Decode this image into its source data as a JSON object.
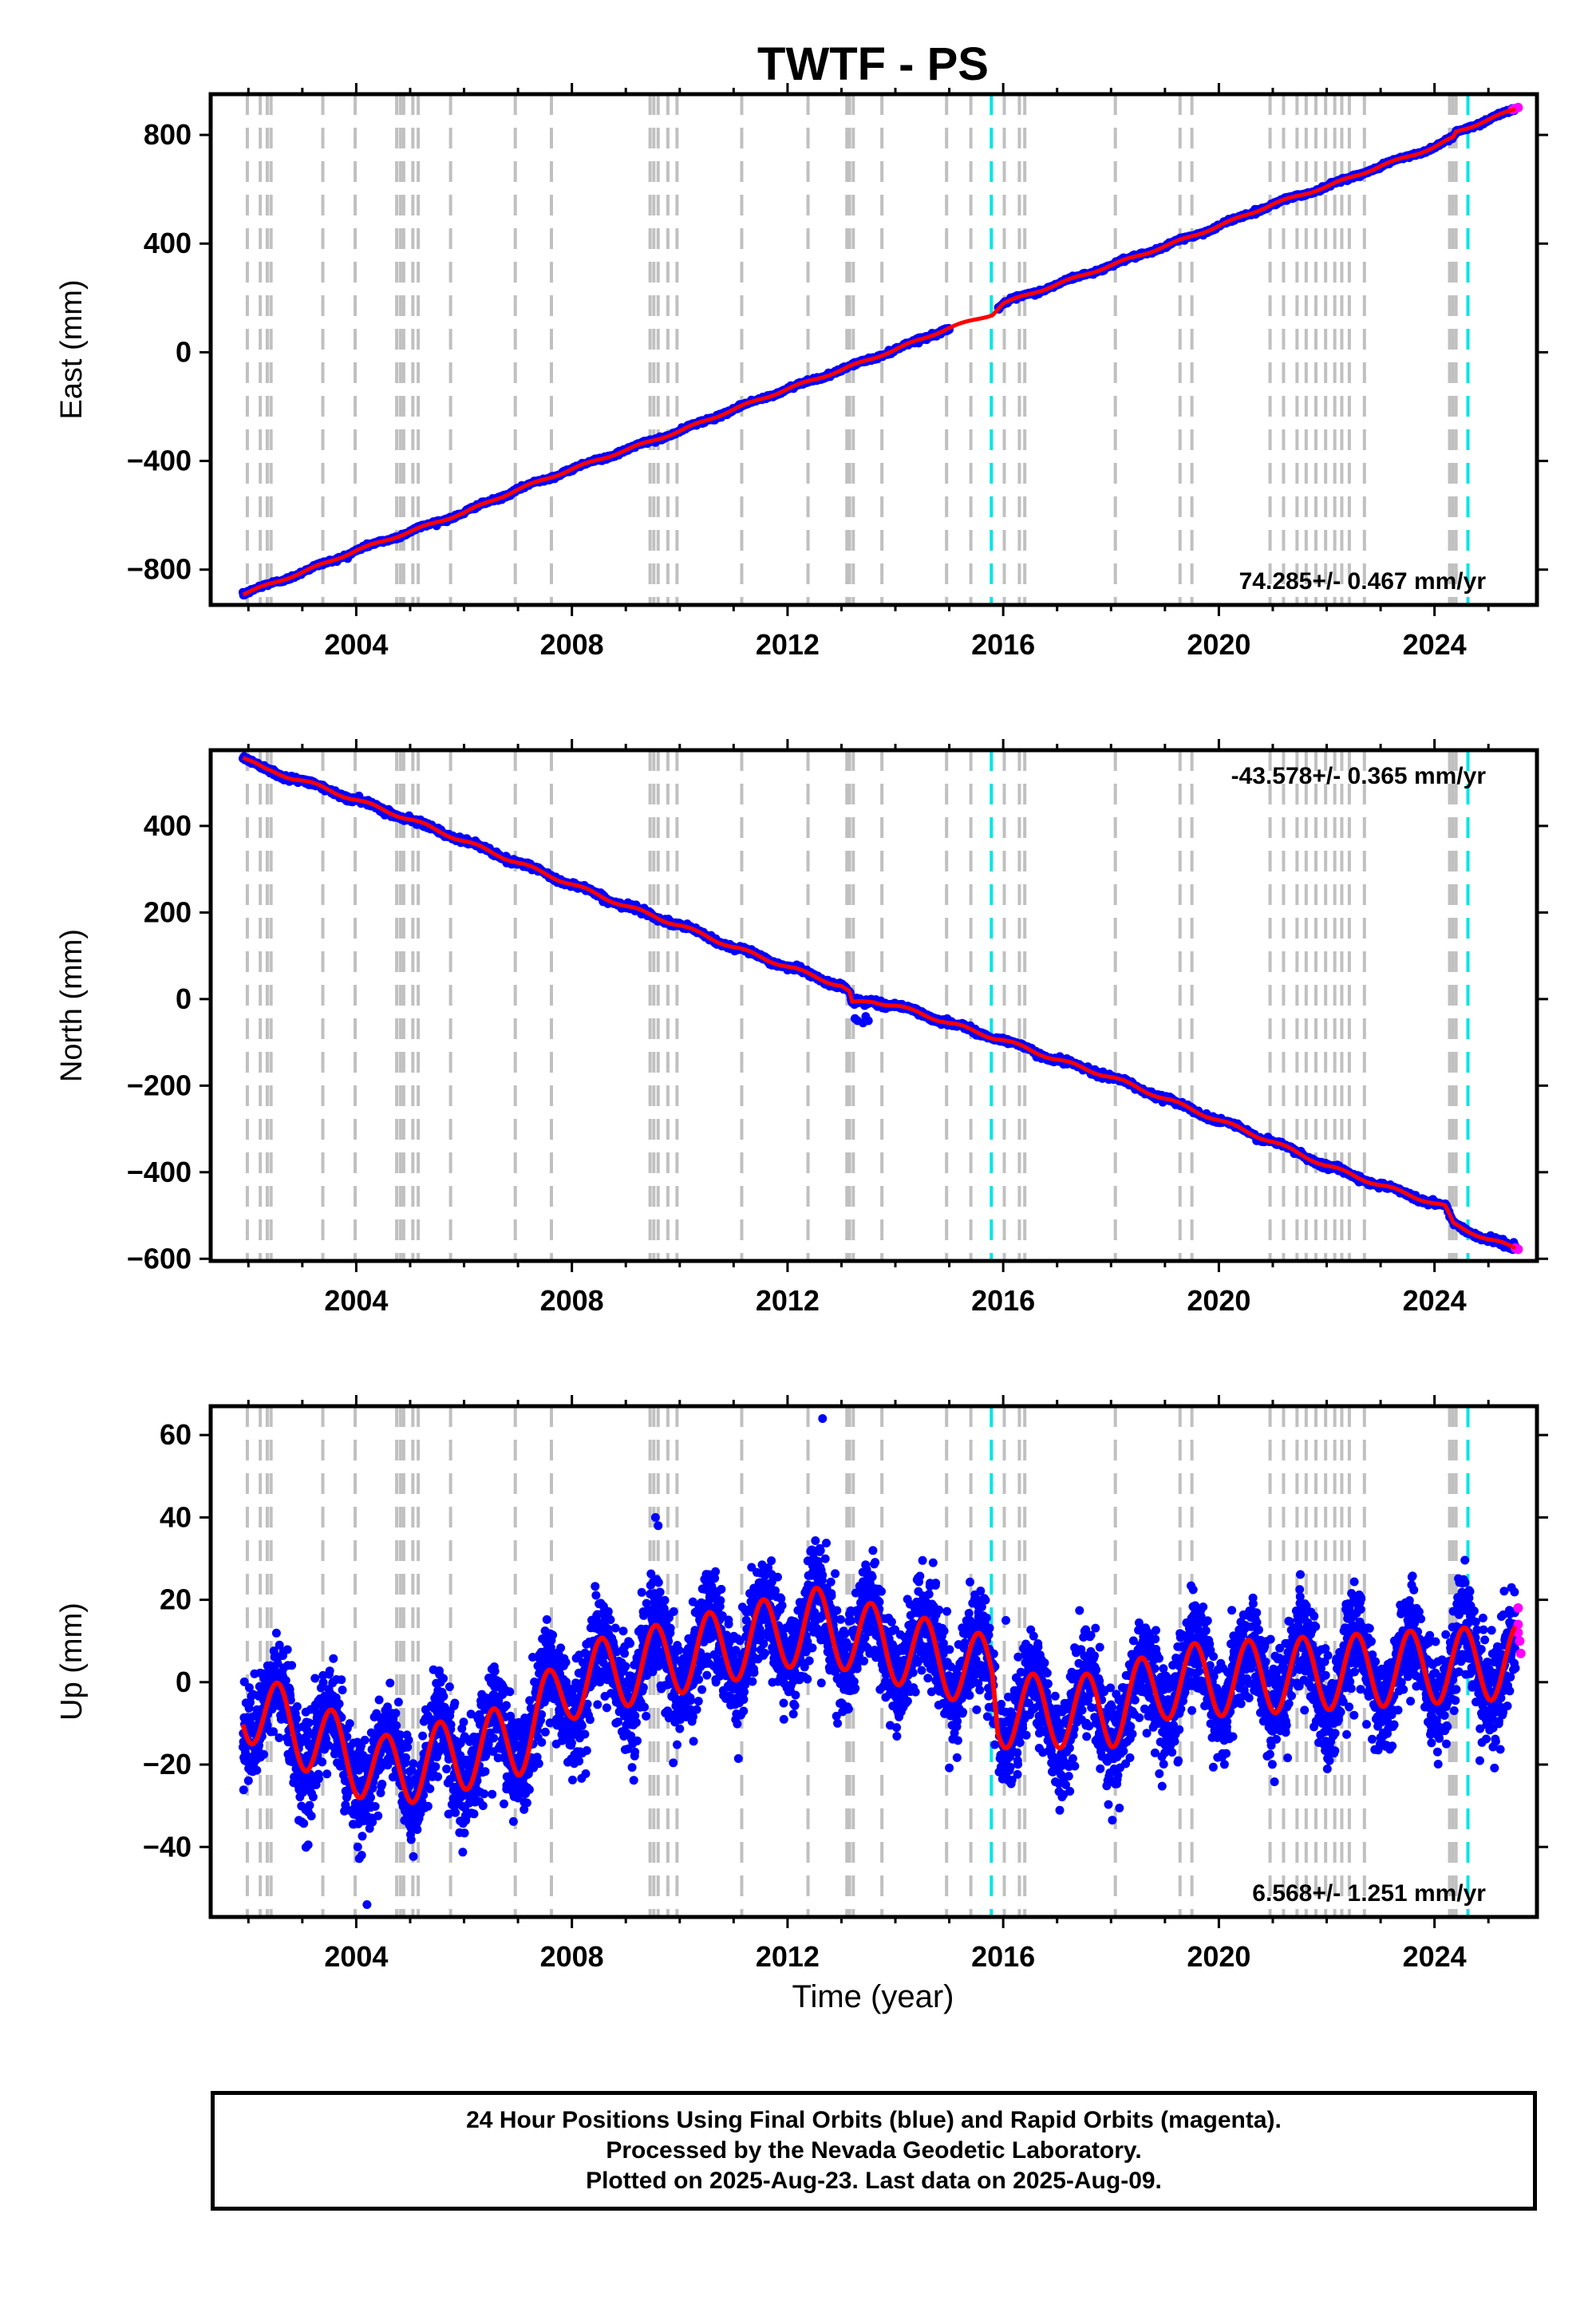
{
  "title": "TWTF - PS",
  "xlabel": "Time (year)",
  "footer": {
    "line1": "24 Hour Positions Using Final Orbits (blue) and Rapid Orbits (magenta).",
    "line2": "Processed by the Nevada Geodetic Laboratory.",
    "line3": "Plotted on 2025-Aug-23. Last data on 2025-Aug-09."
  },
  "colors": {
    "final_orbits": "#0000ff",
    "rapid_orbits": "#ff00ff",
    "model": "#ff0000",
    "equipment_change": "#c0c0c0",
    "earthquake": "#00e5e5"
  },
  "chart_data": [
    {
      "type": "scatter",
      "name": "east",
      "ylabel": "East (mm)",
      "xlim": [
        2001.3,
        2025.9
      ],
      "ylim": [
        -930,
        950
      ],
      "xticks": [
        "2004",
        "2008",
        "2012",
        "2016",
        "2020",
        "2024"
      ],
      "yticks": [
        "800",
        "400",
        "0",
        "−400",
        "−800"
      ],
      "rate": "74.285+/- 0.467 mm/yr",
      "rate_position": "bottom-right",
      "model_keypoints": [
        [
          2001.9,
          -890
        ],
        [
          2003.0,
          -810
        ],
        [
          2004.0,
          -730
        ],
        [
          2005.0,
          -660
        ],
        [
          2006.0,
          -590
        ],
        [
          2007.0,
          -505
        ],
        [
          2008.0,
          -430
        ],
        [
          2009.0,
          -360
        ],
        [
          2010.0,
          -290
        ],
        [
          2011.0,
          -210
        ],
        [
          2012.0,
          -135
        ],
        [
          2013.0,
          -65
        ],
        [
          2014.0,
          10
        ],
        [
          2015.0,
          90
        ],
        [
          2015.8,
          140
        ],
        [
          2016.0,
          180
        ],
        [
          2017.0,
          250
        ],
        [
          2018.0,
          320
        ],
        [
          2019.0,
          390
        ],
        [
          2020.0,
          465
        ],
        [
          2021.0,
          545
        ],
        [
          2022.0,
          610
        ],
        [
          2023.0,
          685
        ],
        [
          2024.0,
          755
        ],
        [
          2024.35,
          790
        ],
        [
          2024.4,
          810
        ],
        [
          2025.5,
          895
        ]
      ],
      "rapid_points": [
        [
          2025.45,
          893
        ],
        [
          2025.5,
          897
        ],
        [
          2025.55,
          901
        ]
      ]
    },
    {
      "type": "scatter",
      "name": "north",
      "ylabel": "North (mm)",
      "xlim": [
        2001.3,
        2025.9
      ],
      "ylim": [
        -605,
        575
      ],
      "xticks": [
        "2004",
        "2008",
        "2012",
        "2016",
        "2020",
        "2024"
      ],
      "yticks": [
        "400",
        "200",
        "0",
        "−200",
        "−400",
        "−600"
      ],
      "rate": "-43.578+/- 0.365 mm/yr",
      "rate_position": "top-right",
      "model_keypoints": [
        [
          2001.9,
          560
        ],
        [
          2002.3,
          530
        ],
        [
          2003.0,
          505
        ],
        [
          2004.0,
          460
        ],
        [
          2005.0,
          415
        ],
        [
          2006.0,
          365
        ],
        [
          2007.0,
          315
        ],
        [
          2008.0,
          265
        ],
        [
          2009.0,
          215
        ],
        [
          2010.0,
          170
        ],
        [
          2011.0,
          120
        ],
        [
          2012.0,
          75
        ],
        [
          2013.0,
          30
        ],
        [
          2013.15,
          15
        ],
        [
          2013.2,
          -10
        ],
        [
          2013.6,
          -5
        ],
        [
          2014.0,
          -15
        ],
        [
          2015.0,
          -55
        ],
        [
          2015.6,
          -80
        ],
        [
          2016.0,
          -95
        ],
        [
          2017.0,
          -140
        ],
        [
          2018.0,
          -180
        ],
        [
          2019.0,
          -230
        ],
        [
          2020.0,
          -280
        ],
        [
          2021.0,
          -330
        ],
        [
          2022.0,
          -385
        ],
        [
          2023.0,
          -430
        ],
        [
          2024.2,
          -480
        ],
        [
          2024.35,
          -520
        ],
        [
          2025.0,
          -555
        ],
        [
          2025.6,
          -580
        ]
      ],
      "offset_points": [
        [
          2013.25,
          -45
        ],
        [
          2013.3,
          -50
        ],
        [
          2013.4,
          -55
        ],
        [
          2013.45,
          -40
        ],
        [
          2013.5,
          -50
        ]
      ],
      "rapid_points": [
        [
          2025.5,
          -575
        ],
        [
          2025.55,
          -578
        ]
      ]
    },
    {
      "type": "scatter",
      "name": "up",
      "ylabel": "Up (mm)",
      "xlim": [
        2001.3,
        2025.9
      ],
      "ylim": [
        -57,
        67
      ],
      "xticks": [
        "2004",
        "2008",
        "2012",
        "2016",
        "2020",
        "2024"
      ],
      "yticks": [
        "60",
        "40",
        "20",
        "0",
        "−20",
        "−40"
      ],
      "rate": "6.568+/- 1.251 mm/yr",
      "rate_position": "bottom-right",
      "trend": [
        [
          2001.9,
          -5
        ],
        [
          2004.5,
          -22
        ],
        [
          2007.0,
          -14
        ],
        [
          2008.0,
          0
        ],
        [
          2012.5,
          14
        ],
        [
          2015.8,
          2
        ],
        [
          2015.9,
          -7
        ],
        [
          2018.0,
          -7
        ],
        [
          2019.0,
          0
        ],
        [
          2025.6,
          5
        ]
      ],
      "seasonal_amplitude": 9,
      "scatter_sigma": 6,
      "outliers": [
        [
          2012.65,
          64
        ],
        [
          2009.55,
          40
        ],
        [
          2009.6,
          38
        ],
        [
          2004.2,
          -54
        ],
        [
          2004.1,
          -42
        ],
        [
          2016.05,
          15
        ],
        [
          2017.8,
          -21
        ]
      ],
      "rapid_points": [
        [
          2025.55,
          18
        ],
        [
          2025.55,
          14
        ],
        [
          2025.58,
          10
        ],
        [
          2025.6,
          7
        ],
        [
          2025.55,
          12
        ]
      ]
    }
  ],
  "equipment_changes": [
    2001.98,
    2002.22,
    2002.35,
    2002.42,
    2003.38,
    2003.98,
    2004.75,
    2004.82,
    2004.88,
    2005.05,
    2005.15,
    2005.75,
    2006.95,
    2007.62,
    2009.45,
    2009.52,
    2009.6,
    2009.78,
    2009.95,
    2011.15,
    2012.38,
    2013.1,
    2013.15,
    2013.22,
    2013.75,
    2014.95,
    2015.4,
    2016.02,
    2016.3,
    2016.4,
    2018.08,
    2019.28,
    2019.5,
    2020.95,
    2021.2,
    2021.45,
    2021.62,
    2021.8,
    2021.98,
    2022.15,
    2022.28,
    2022.42,
    2022.7,
    2024.28,
    2024.34,
    2024.4
  ],
  "earthquakes": [
    2015.78,
    2024.62
  ]
}
